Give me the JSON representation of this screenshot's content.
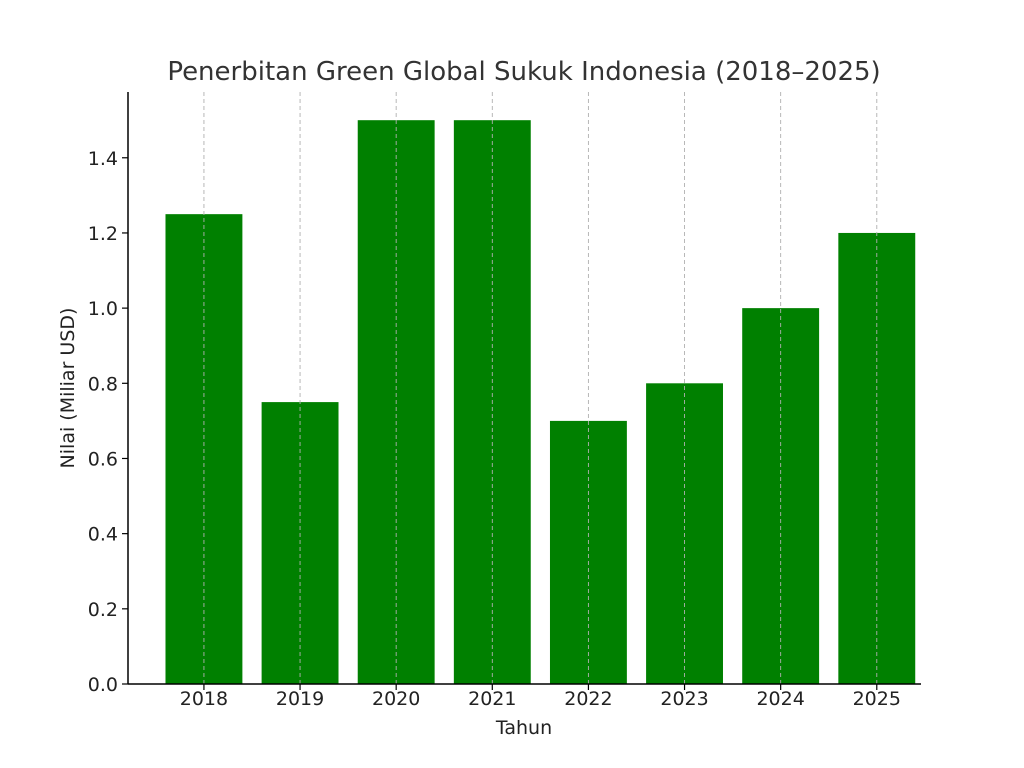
{
  "chart_data": {
    "type": "bar",
    "title": "Penerbitan Green Global Sukuk Indonesia (2018–2025)",
    "xlabel": "Tahun",
    "ylabel": "Nilai (Miliar USD)",
    "categories": [
      "2018",
      "2019",
      "2020",
      "2021",
      "2022",
      "2023",
      "2024",
      "2025"
    ],
    "values": [
      1.25,
      0.75,
      1.5,
      1.5,
      0.7,
      0.8,
      1.0,
      1.2
    ],
    "ylim": [
      0,
      1.575
    ],
    "yticks": [
      0.0,
      0.2,
      0.4,
      0.6,
      0.8,
      1.0,
      1.2,
      1.4
    ],
    "ytick_labels": [
      "0.0",
      "0.2",
      "0.4",
      "0.6",
      "0.8",
      "1.0",
      "1.2",
      "1.4"
    ],
    "bar_color": "#008000",
    "grid": "vertical dashed",
    "legend": "none"
  }
}
